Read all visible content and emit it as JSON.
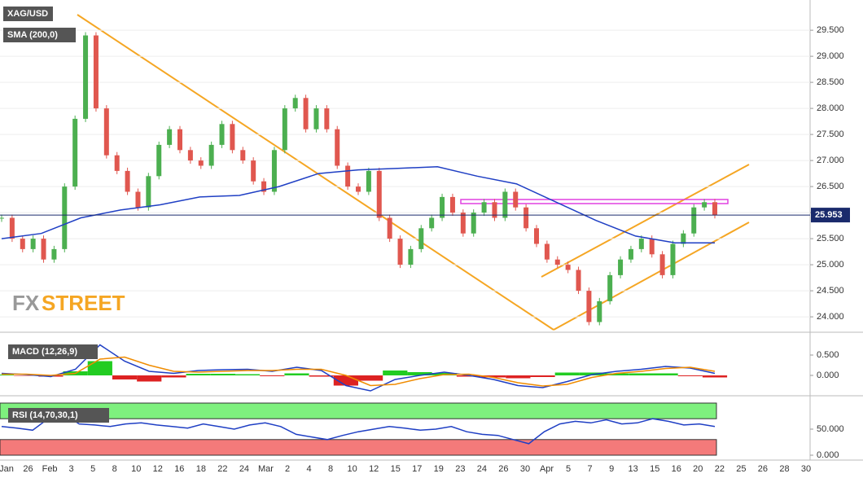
{
  "symbol_label": "XAG/USD",
  "logo": [
    "FX",
    "STREET"
  ],
  "date_axis": [
    "Jan",
    "26",
    "Feb",
    "3",
    "5",
    "8",
    "10",
    "12",
    "16",
    "18",
    "22",
    "24",
    "Mar",
    "2",
    "4",
    "8",
    "10",
    "12",
    "15",
    "17",
    "19",
    "23",
    "24",
    "26",
    "30",
    "Apr",
    "5",
    "7",
    "9",
    "13",
    "15",
    "16",
    "20",
    "22",
    "25",
    "26",
    "28",
    "30"
  ],
  "chart_data": [
    {
      "type": "candlestick",
      "title": "SMA (200,0)",
      "closes": [
        25.9,
        25.5,
        25.3,
        25.5,
        25.1,
        25.3,
        26.5,
        27.8,
        29.4,
        28.0,
        27.1,
        26.8,
        26.4,
        26.1,
        26.7,
        27.3,
        27.6,
        27.2,
        27.0,
        26.9,
        27.3,
        27.7,
        27.2,
        27.0,
        26.6,
        26.4,
        27.2,
        28.0,
        28.2,
        27.6,
        28.0,
        27.6,
        26.9,
        26.5,
        26.4,
        26.8,
        25.9,
        25.5,
        25.0,
        25.3,
        25.7,
        25.9,
        26.3,
        26.0,
        25.6,
        26.0,
        26.2,
        25.9,
        26.4,
        26.1,
        25.7,
        25.4,
        25.1,
        25.0,
        24.9,
        24.5,
        23.9,
        24.3,
        24.8,
        25.1,
        25.3,
        25.5,
        25.2,
        24.8,
        25.4,
        25.6,
        26.1,
        26.2,
        25.95
      ],
      "up_color": "#4caf50",
      "down_color": "#e0574f",
      "sma": [
        25.5,
        25.6,
        25.9,
        26.05,
        26.15,
        26.3,
        26.33,
        26.5,
        26.75,
        26.82,
        26.85,
        26.88,
        26.7,
        26.55,
        26.2,
        25.85,
        25.55,
        25.42,
        25.42
      ],
      "sma_color": "#1f3fc4",
      "last": {
        "value": 25.953,
        "label": "25.953"
      },
      "ylim": [
        23.72,
        30.08
      ],
      "yticks": [
        {
          "value": 24,
          "label": "24.000"
        },
        {
          "value": 24.5,
          "label": "24.500"
        },
        {
          "value": 25,
          "label": "25.000"
        },
        {
          "value": 25.5,
          "label": "25.500"
        },
        {
          "value": 26,
          "label": "26.000"
        },
        {
          "value": 26.5,
          "label": "26.500"
        },
        {
          "value": 27,
          "label": "27.000"
        },
        {
          "value": 27.5,
          "label": "27.500"
        },
        {
          "value": 28,
          "label": "28.000"
        },
        {
          "value": 28.5,
          "label": "28.500"
        },
        {
          "value": 29,
          "label": "29.000"
        },
        {
          "value": 29.5,
          "label": "29.500"
        }
      ],
      "grid": true
    },
    {
      "type": "macd",
      "title": "MACD (12,26,9)",
      "macd": [
        0.05,
        0.02,
        -0.03,
        0.15,
        0.75,
        0.35,
        0.1,
        0.05,
        0.12,
        0.14,
        0.15,
        0.1,
        0.2,
        0.12,
        -0.25,
        -0.38,
        -0.1,
        0.0,
        0.08,
        0.0,
        -0.1,
        -0.25,
        -0.3,
        -0.15,
        0.02,
        0.1,
        0.15,
        0.22,
        0.18,
        0.05
      ],
      "signal": [
        0.03,
        0.03,
        0.0,
        0.05,
        0.4,
        0.45,
        0.25,
        0.1,
        0.08,
        0.1,
        0.12,
        0.12,
        0.15,
        0.15,
        0.0,
        -0.25,
        -0.22,
        -0.08,
        0.02,
        0.03,
        -0.05,
        -0.18,
        -0.26,
        -0.22,
        -0.05,
        0.05,
        0.1,
        0.17,
        0.2,
        0.1
      ],
      "histogram": [
        0.02,
        -0.01,
        -0.03,
        0.1,
        0.35,
        -0.1,
        -0.15,
        -0.05,
        0.04,
        0.04,
        0.03,
        -0.02,
        0.05,
        -0.03,
        -0.25,
        -0.13,
        0.12,
        0.08,
        0.06,
        -0.03,
        -0.05,
        -0.07,
        -0.04,
        0.07,
        0.07,
        0.05,
        0.05,
        0.05,
        -0.02,
        -0.05
      ],
      "colors": {
        "macd": "#1f3fc4",
        "signal": "#f08c00",
        "up": "#22cc22",
        "down": "#dd2222"
      },
      "ylim": [
        -0.48,
        0.92
      ],
      "yticks": [
        {
          "value": 0,
          "label": "0.000"
        },
        {
          "value": 0.5,
          "label": "0.500"
        }
      ]
    },
    {
      "type": "rsi",
      "title": "RSI (14,70,30,1)",
      "values": [
        55,
        52,
        48,
        70,
        80,
        60,
        58,
        55,
        60,
        62,
        58,
        55,
        52,
        60,
        55,
        50,
        58,
        62,
        55,
        40,
        35,
        30,
        38,
        45,
        50,
        55,
        52,
        48,
        50,
        55,
        45,
        40,
        38,
        30,
        22,
        45,
        60,
        65,
        62,
        68,
        60,
        62,
        70,
        65,
        58,
        60,
        55
      ],
      "color": "#1f3fc4",
      "levels": [
        70,
        30
      ],
      "band_colors": [
        "#7ef07e",
        "#f47a7a"
      ],
      "ylim": [
        -4.7,
        106.25
      ],
      "yticks": [
        {
          "value": 0,
          "label": "0.000"
        },
        {
          "value": 50,
          "label": "50.000"
        }
      ]
    }
  ]
}
